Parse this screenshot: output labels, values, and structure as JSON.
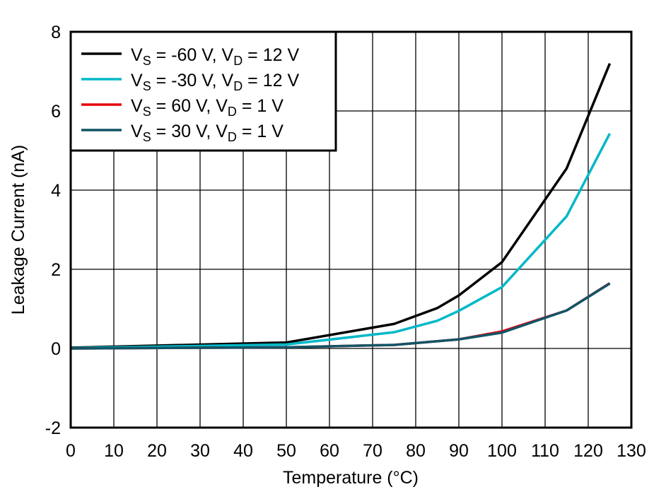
{
  "chart_data": {
    "type": "line",
    "title": "",
    "xlabel": "Temperature (°C)",
    "ylabel": "Leakage Current (nA)",
    "xlim": [
      0,
      130
    ],
    "ylim": [
      -2,
      8
    ],
    "xticks": [
      0,
      10,
      20,
      30,
      40,
      50,
      60,
      70,
      80,
      90,
      100,
      110,
      120,
      130
    ],
    "yticks": [
      -2,
      0,
      2,
      4,
      6,
      8
    ],
    "grid": true,
    "legend_position": "top-left",
    "series": [
      {
        "name": "VS = -60 V, VD = 12 V",
        "label_parts": [
          "V",
          "S",
          " = -60 V, V",
          "D",
          " = 12 V"
        ],
        "color": "#000000",
        "x": [
          0,
          50,
          75,
          85,
          90,
          100,
          115,
          125
        ],
        "y": [
          0.02,
          0.15,
          0.62,
          1.02,
          1.34,
          2.18,
          4.55,
          7.2
        ]
      },
      {
        "name": "VS = -30 V, VD = 12 V",
        "label_parts": [
          "V",
          "S",
          " = -30 V, V",
          "D",
          " = 12 V"
        ],
        "color": "#00b8c8",
        "x": [
          0,
          50,
          75,
          85,
          90,
          100,
          115,
          125
        ],
        "y": [
          0.01,
          0.1,
          0.41,
          0.7,
          0.95,
          1.55,
          3.34,
          5.43
        ]
      },
      {
        "name": "VS = 60 V, VD = 1 V",
        "label_parts": [
          "V",
          "S",
          " = 60 V, V",
          "D",
          " = 1 V"
        ],
        "color": "#e8000b",
        "x": [
          0,
          50,
          75,
          90,
          100,
          115,
          125
        ],
        "y": [
          0.0,
          0.03,
          0.09,
          0.23,
          0.43,
          0.96,
          1.65
        ]
      },
      {
        "name": "VS = 30 V, VD = 1 V",
        "label_parts": [
          "V",
          "S",
          " = 30 V, V",
          "D",
          " = 1 V"
        ],
        "color": "#115566",
        "x": [
          0,
          50,
          75,
          90,
          100,
          115,
          125
        ],
        "y": [
          0.0,
          0.03,
          0.09,
          0.23,
          0.4,
          0.96,
          1.64
        ]
      }
    ]
  }
}
